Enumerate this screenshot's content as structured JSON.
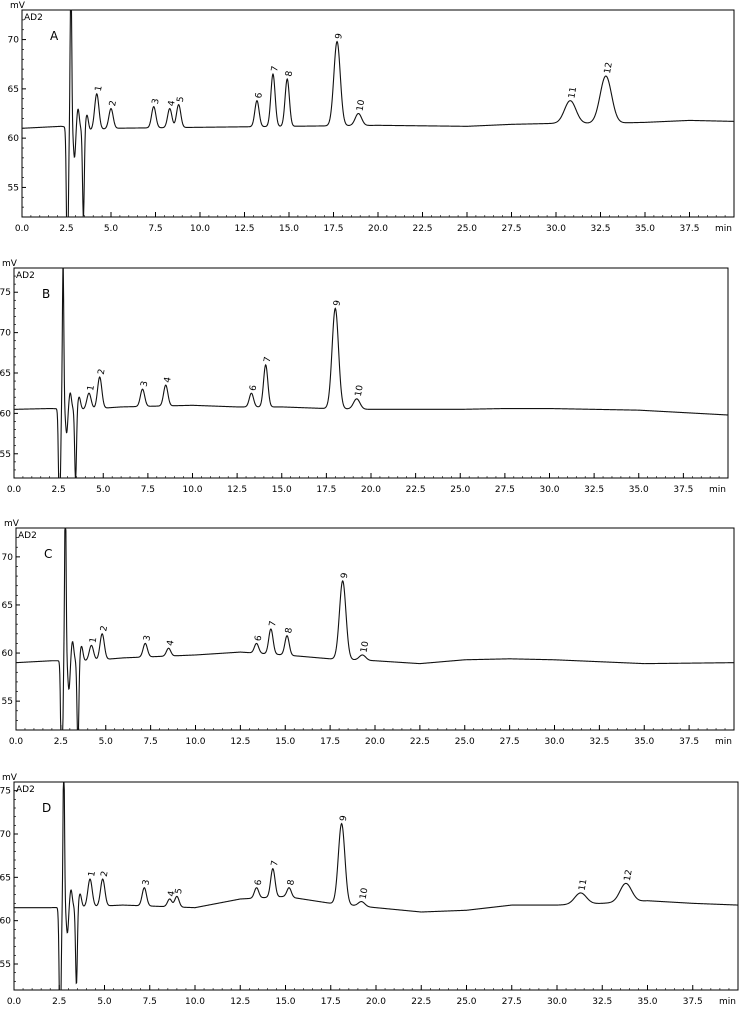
{
  "chart_data": [
    {
      "type": "line",
      "panel_label": "A",
      "detector": "AD2",
      "yunit": "mV",
      "xunit": "min",
      "xlim": [
        0,
        40
      ],
      "ylim": [
        52,
        73
      ],
      "yticks": [
        55,
        60,
        65,
        70
      ],
      "xticks": [
        "0.0",
        "2.5",
        "5.0",
        "7.5",
        "10.0",
        "12.5",
        "15.0",
        "17.5",
        "20.0",
        "22.5",
        "25.0",
        "27.5",
        "30.0",
        "32.5",
        "35.0",
        "37.5"
      ],
      "baseline": [
        [
          0,
          61
        ],
        [
          2.2,
          61.2
        ],
        [
          3.0,
          61
        ],
        [
          3.8,
          60.8
        ],
        [
          5,
          61
        ],
        [
          10,
          61.1
        ],
        [
          15,
          61.2
        ],
        [
          20,
          61.3
        ],
        [
          25,
          61.2
        ],
        [
          27.5,
          61.4
        ],
        [
          30,
          61.5
        ],
        [
          32.5,
          61.5
        ],
        [
          35,
          61.6
        ],
        [
          37.5,
          61.8
        ],
        [
          40,
          61.7
        ]
      ],
      "peaks": [
        {
          "label": "1",
          "rt": 4.2,
          "height": 64.5
        },
        {
          "label": "2",
          "rt": 5.0,
          "height": 63.0
        },
        {
          "label": "3",
          "rt": 7.4,
          "height": 63.2
        },
        {
          "label": "4",
          "rt": 8.3,
          "height": 63.0
        },
        {
          "label": "5",
          "rt": 8.8,
          "height": 63.4
        },
        {
          "label": "6",
          "rt": 13.2,
          "height": 63.8
        },
        {
          "label": "7",
          "rt": 14.1,
          "height": 66.5
        },
        {
          "label": "8",
          "rt": 14.9,
          "height": 66.0
        },
        {
          "label": "9",
          "rt": 17.7,
          "height": 69.8
        },
        {
          "label": "10",
          "rt": 18.9,
          "height": 62.5
        },
        {
          "label": "11",
          "rt": 30.8,
          "height": 63.8
        },
        {
          "label": "12",
          "rt": 32.8,
          "height": 66.3
        }
      ]
    },
    {
      "type": "line",
      "panel_label": "B",
      "detector": "AD2",
      "yunit": "mV",
      "xunit": "min",
      "xlim": [
        0,
        40
      ],
      "ylim": [
        52,
        78
      ],
      "yticks": [
        55,
        60,
        65,
        70,
        75
      ],
      "xticks": [
        "0.0",
        "2.5",
        "5.0",
        "7.5",
        "10.0",
        "12.5",
        "15.0",
        "17.5",
        "20.0",
        "22.5",
        "25.0",
        "27.5",
        "30.0",
        "32.5",
        "35.0",
        "37.5"
      ],
      "baseline": [
        [
          0,
          60.5
        ],
        [
          2.0,
          60.6
        ],
        [
          4,
          60.5
        ],
        [
          6,
          60.8
        ],
        [
          10,
          61.0
        ],
        [
          12.5,
          60.8
        ],
        [
          15,
          60.8
        ],
        [
          17.5,
          60.6
        ],
        [
          20,
          60.5
        ],
        [
          25,
          60.5
        ],
        [
          27.5,
          60.6
        ],
        [
          30,
          60.6
        ],
        [
          35,
          60.4
        ],
        [
          40,
          59.8
        ]
      ],
      "peaks": [
        {
          "label": "1",
          "rt": 4.2,
          "height": 62.5
        },
        {
          "label": "2",
          "rt": 4.8,
          "height": 64.5
        },
        {
          "label": "3",
          "rt": 7.2,
          "height": 63.0
        },
        {
          "label": "4",
          "rt": 8.5,
          "height": 63.5
        },
        {
          "label": "6",
          "rt": 13.3,
          "height": 62.5
        },
        {
          "label": "7",
          "rt": 14.1,
          "height": 66.0
        },
        {
          "label": "9",
          "rt": 18.0,
          "height": 73.0
        },
        {
          "label": "10",
          "rt": 19.2,
          "height": 61.8
        }
      ]
    },
    {
      "type": "line",
      "panel_label": "C",
      "detector": "AD2",
      "yunit": "mV",
      "xunit": "min",
      "xlim": [
        0,
        40
      ],
      "ylim": [
        52,
        73
      ],
      "yticks": [
        55,
        60,
        65,
        70
      ],
      "xticks": [
        "0.0",
        "2.5",
        "5.0",
        "7.5",
        "10.0",
        "12.5",
        "15.0",
        "17.5",
        "20.0",
        "22.5",
        "25.0",
        "27.5",
        "30.0",
        "32.5",
        "35.0",
        "37.5"
      ],
      "baseline": [
        [
          0,
          59
        ],
        [
          2.0,
          59.2
        ],
        [
          4,
          59.2
        ],
        [
          6,
          59.5
        ],
        [
          10,
          59.8
        ],
        [
          12.5,
          60.1
        ],
        [
          15,
          59.8
        ],
        [
          17.5,
          59.4
        ],
        [
          20,
          59.2
        ],
        [
          22.5,
          58.9
        ],
        [
          25,
          59.3
        ],
        [
          27.5,
          59.4
        ],
        [
          30,
          59.3
        ],
        [
          32.5,
          59.1
        ],
        [
          35,
          58.9
        ],
        [
          40,
          59.0
        ]
      ],
      "peaks": [
        {
          "label": "1",
          "rt": 4.2,
          "height": 60.8
        },
        {
          "label": "2",
          "rt": 4.8,
          "height": 62.0
        },
        {
          "label": "3",
          "rt": 7.2,
          "height": 61.0
        },
        {
          "label": "4",
          "rt": 8.5,
          "height": 60.5
        },
        {
          "label": "6",
          "rt": 13.4,
          "height": 61.0
        },
        {
          "label": "7",
          "rt": 14.2,
          "height": 62.5
        },
        {
          "label": "8",
          "rt": 15.1,
          "height": 61.8
        },
        {
          "label": "9",
          "rt": 18.2,
          "height": 67.5
        },
        {
          "label": "10",
          "rt": 19.3,
          "height": 59.8
        }
      ]
    },
    {
      "type": "line",
      "panel_label": "D",
      "detector": "AD2",
      "yunit": "mV",
      "xunit": "min",
      "xlim": [
        0,
        40
      ],
      "ylim": [
        52,
        76
      ],
      "yticks": [
        55,
        60,
        65,
        70,
        75
      ],
      "xticks": [
        "0.0",
        "2.5",
        "5.0",
        "7.5",
        "10.0",
        "12.5",
        "15.0",
        "17.5",
        "20.0",
        "22.5",
        "25.0",
        "27.5",
        "30.0",
        "32.5",
        "35.0",
        "37.5"
      ],
      "baseline": [
        [
          0,
          61.5
        ],
        [
          2.0,
          61.5
        ],
        [
          4,
          61.6
        ],
        [
          6,
          61.8
        ],
        [
          10,
          61.5
        ],
        [
          12.5,
          62.5
        ],
        [
          15,
          62.8
        ],
        [
          17.5,
          62.0
        ],
        [
          20,
          61.5
        ],
        [
          22.5,
          61.0
        ],
        [
          25,
          61.2
        ],
        [
          27.5,
          61.8
        ],
        [
          30,
          61.8
        ],
        [
          32.5,
          62.0
        ],
        [
          35,
          62.3
        ],
        [
          37.5,
          62.0
        ],
        [
          40,
          61.8
        ]
      ],
      "peaks": [
        {
          "label": "1",
          "rt": 4.2,
          "height": 64.8
        },
        {
          "label": "2",
          "rt": 4.9,
          "height": 64.8
        },
        {
          "label": "3",
          "rt": 7.2,
          "height": 63.8
        },
        {
          "label": "4",
          "rt": 8.6,
          "height": 62.5
        },
        {
          "label": "5",
          "rt": 9.0,
          "height": 62.8
        },
        {
          "label": "6",
          "rt": 13.4,
          "height": 63.8
        },
        {
          "label": "7",
          "rt": 14.3,
          "height": 66.0
        },
        {
          "label": "8",
          "rt": 15.2,
          "height": 63.8
        },
        {
          "label": "9",
          "rt": 18.1,
          "height": 71.2
        },
        {
          "label": "10",
          "rt": 19.2,
          "height": 62.2
        },
        {
          "label": "11",
          "rt": 31.3,
          "height": 63.2
        },
        {
          "label": "12",
          "rt": 33.8,
          "height": 64.3
        }
      ]
    }
  ]
}
